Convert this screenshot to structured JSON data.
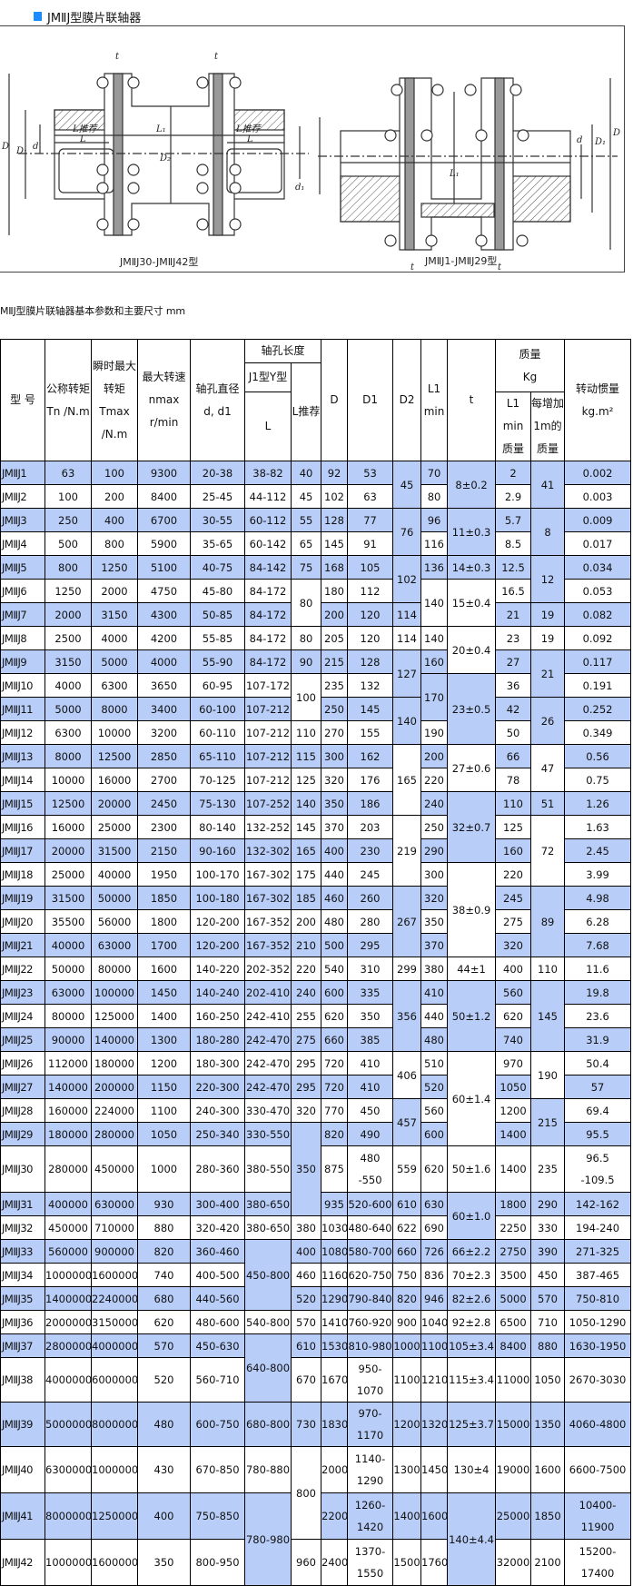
{
  "page_title": "JMⅡJ型膜片联轴器",
  "accent_color": "#1a8cff",
  "highlight_color": "#b8cdf8",
  "diagram": {
    "left_caption": "JMⅡJ30-JMⅡJ42型",
    "right_caption": "JMⅡJ1-JMⅡJ29型",
    "labels": {
      "D": "D",
      "D1": "D₁",
      "d": "d",
      "D2": "D₂",
      "d1": "d₁",
      "L": "L",
      "L1": "L₁",
      "Lrec": "L推荐",
      "t": "t"
    }
  },
  "table_caption": "MⅡJ型膜片联轴器基本参数和主要尺寸 mm",
  "header": {
    "model": "型 号",
    "tn": "公称转矩\nTn /N.m",
    "tmax": "瞬时最大\n转矩\nTmax\n/N.m",
    "nmax": "最大转速\nnmax\nr/min",
    "bore": "轴孔直径\nd, d1",
    "bore_length": "轴孔长度",
    "j1y": "J1型Y型",
    "l": "L",
    "lrec": "L推荐",
    "D": "D",
    "D1": "D1",
    "D2": "D2",
    "L1": "L1\nmin",
    "t": "t",
    "mass": "质量\nKg",
    "mass_l1": "L1\nmin\n质量",
    "mass_per_m": "每增加\n1m的\n质量",
    "inertia": "转动惯量\nkg.m²"
  },
  "rows": [
    {
      "hl": true,
      "cells": [
        "JMⅡJ1",
        "63",
        "100",
        "9300",
        "20-38",
        "38-82",
        "40",
        "92",
        "53",
        {
          "v": "45",
          "rs": 2,
          "hl": true
        },
        "70",
        {
          "v": "8±0.2",
          "rs": 2,
          "hl": true
        },
        "2",
        {
          "v": "41",
          "rs": 2,
          "hl": true
        },
        "0.002"
      ]
    },
    {
      "hl": false,
      "cells": [
        "JMⅡJ2",
        "100",
        "200",
        "8400",
        "25-45",
        "44-112",
        "45",
        "102",
        "63",
        "80",
        "2.9",
        "0.003"
      ]
    },
    {
      "hl": true,
      "cells": [
        "JMⅡJ3",
        "250",
        "400",
        "6700",
        "30-55",
        "60-112",
        "55",
        "128",
        "77",
        {
          "v": "76",
          "rs": 2,
          "hl": true
        },
        "96",
        {
          "v": "11±0.3",
          "rs": 2,
          "hl": true
        },
        "5.7",
        {
          "v": "8",
          "rs": 2,
          "hl": true
        },
        "0.009"
      ]
    },
    {
      "hl": false,
      "cells": [
        "JMⅡJ4",
        "500",
        "800",
        "5900",
        "35-65",
        "60-142",
        "65",
        "145",
        "91",
        "116",
        "8.5",
        "0.017"
      ]
    },
    {
      "hl": true,
      "cells": [
        "JMⅡJ5",
        "800",
        "1250",
        "5100",
        "40-75",
        "84-142",
        "75",
        "168",
        "105",
        {
          "v": "102",
          "rs": 2,
          "hl": true
        },
        "136",
        "14±0.3",
        "12.5",
        {
          "v": "12",
          "rs": 2,
          "hl": true
        },
        "0.034"
      ]
    },
    {
      "hl": false,
      "cells": [
        "JMⅡJ6",
        "1250",
        "2000",
        "4750",
        "45-80",
        "84-172",
        {
          "v": "80",
          "rs": 2,
          "hl": false
        },
        "180",
        "112",
        {
          "v": "140",
          "rs": 2,
          "hl": false
        },
        {
          "v": "15±0.4",
          "rs": 2,
          "hl": false
        },
        "16.5",
        "0.053"
      ]
    },
    {
      "hl": true,
      "cells": [
        "JMⅡJ7",
        "2000",
        "3150",
        "4300",
        "50-85",
        "84-172",
        "200",
        "120",
        "114",
        "21",
        "19",
        "0.082"
      ]
    },
    {
      "hl": false,
      "cells": [
        "JMⅡJ8",
        "2500",
        "4000",
        "4200",
        "55-85",
        "84-172",
        "80",
        "205",
        "120",
        "114",
        "140",
        {
          "v": "20±0.4",
          "rs": 2,
          "hl": false
        },
        "23",
        "19",
        "0.092"
      ]
    },
    {
      "hl": true,
      "cells": [
        "JMⅡJ9",
        "3150",
        "5000",
        "4000",
        "55-90",
        "84-172",
        "90",
        "215",
        "128",
        {
          "v": "127",
          "rs": 2,
          "hl": true
        },
        "160",
        "27",
        {
          "v": "21",
          "rs": 2,
          "hl": true
        },
        "0.117"
      ]
    },
    {
      "hl": false,
      "cells": [
        "JMⅡJ10",
        "4000",
        "6300",
        "3650",
        "60-95",
        "107-172",
        {
          "v": "100",
          "rs": 2,
          "hl": false
        },
        "235",
        "132",
        {
          "v": "170",
          "rs": 2,
          "hl": true
        },
        {
          "v": "23±0.5",
          "rs": 3,
          "hl": true
        },
        "36",
        "0.191"
      ]
    },
    {
      "hl": true,
      "cells": [
        "JMⅡJ11",
        "5000",
        "8000",
        "3400",
        "60-100",
        "107-212",
        "250",
        "145",
        {
          "v": "140",
          "rs": 2,
          "hl": true
        },
        "42",
        {
          "v": "26",
          "rs": 2,
          "hl": true
        },
        "0.252"
      ]
    },
    {
      "hl": false,
      "cells": [
        "JMⅡJ12",
        "6300",
        "10000",
        "3200",
        "60-110",
        "107-212",
        "110",
        "270",
        "155",
        "190",
        "50",
        "0.349"
      ]
    },
    {
      "hl": true,
      "cells": [
        "JMⅡJ13",
        "8000",
        "12500",
        "2850",
        "65-110",
        "107-212",
        "115",
        "300",
        "162",
        {
          "v": "165",
          "rs": 3,
          "hl": false
        },
        "200",
        {
          "v": "27±0.6",
          "rs": 2,
          "hl": false
        },
        "66",
        {
          "v": "47",
          "rs": 2,
          "hl": false
        },
        "0.56"
      ]
    },
    {
      "hl": false,
      "cells": [
        "JMⅡJ14",
        "10000",
        "16000",
        "2700",
        "70-125",
        "107-212",
        "125",
        "320",
        "176",
        "220",
        "78",
        "0.75"
      ]
    },
    {
      "hl": true,
      "cells": [
        "JMⅡJ15",
        "12500",
        "20000",
        "2450",
        "75-130",
        "107-252",
        "140",
        "350",
        "186",
        "240",
        {
          "v": "32±0.7",
          "rs": 3,
          "hl": true
        },
        "110",
        "51",
        "1.26"
      ]
    },
    {
      "hl": false,
      "cells": [
        "JMⅡJ16",
        "16000",
        "25000",
        "2300",
        "80-140",
        "132-252",
        "145",
        "370",
        "203",
        {
          "v": "219",
          "rs": 3,
          "hl": false
        },
        "250",
        "125",
        {
          "v": "72",
          "rs": 3,
          "hl": false
        },
        "1.63"
      ]
    },
    {
      "hl": true,
      "cells": [
        "JMⅡJ17",
        "20000",
        "31500",
        "2150",
        "90-160",
        "132-302",
        "165",
        "400",
        "230",
        "290",
        "160",
        "2.45"
      ]
    },
    {
      "hl": false,
      "cells": [
        "JMⅡJ18",
        "25000",
        "40000",
        "1950",
        "100-170",
        "167-302",
        "175",
        "440",
        "245",
        "300",
        {
          "v": "38±0.9",
          "rs": 4,
          "hl": false
        },
        "220",
        "3.99"
      ]
    },
    {
      "hl": true,
      "cells": [
        "JMⅡJ19",
        "31500",
        "50000",
        "1850",
        "100-180",
        "167-302",
        "185",
        "460",
        "260",
        {
          "v": "267",
          "rs": 3,
          "hl": true
        },
        "320",
        "245",
        {
          "v": "89",
          "rs": 3,
          "hl": true
        },
        "4.98"
      ]
    },
    {
      "hl": false,
      "cells": [
        "JMⅡJ20",
        "35500",
        "56000",
        "1800",
        "120-200",
        "167-352",
        "200",
        "480",
        "280",
        "350",
        "275",
        "6.28"
      ]
    },
    {
      "hl": true,
      "cells": [
        "JMⅡJ21",
        "40000",
        "63000",
        "1700",
        "120-200",
        "167-352",
        "210",
        "500",
        "295",
        "370",
        "320",
        "7.68"
      ]
    },
    {
      "hl": false,
      "cells": [
        "JMⅡJ22",
        "50000",
        "80000",
        "1600",
        "140-220",
        "202-352",
        "220",
        "540",
        "310",
        "299",
        "380",
        "44±1",
        "400",
        "110",
        "11.6"
      ]
    },
    {
      "hl": true,
      "cells": [
        "JMⅡJ23",
        "63000",
        "100000",
        "1450",
        "140-240",
        "202-410",
        "240",
        "600",
        "335",
        {
          "v": "356",
          "rs": 3,
          "hl": true
        },
        "410",
        {
          "v": "50±1.2",
          "rs": 3,
          "hl": true
        },
        "560",
        {
          "v": "145",
          "rs": 3,
          "hl": true
        },
        "19.8"
      ]
    },
    {
      "hl": false,
      "cells": [
        "JMⅡJ24",
        "80000",
        "125000",
        "1400",
        "160-250",
        "242-410",
        "255",
        "620",
        "350",
        "440",
        "620",
        "23.6"
      ]
    },
    {
      "hl": true,
      "cells": [
        "JMⅡJ25",
        "90000",
        "140000",
        "1300",
        "180-280",
        "242-470",
        "275",
        "660",
        "385",
        "480",
        "740",
        "31.9"
      ]
    },
    {
      "hl": false,
      "cells": [
        "JMⅡJ26",
        "112000",
        "180000",
        "1200",
        "180-300",
        "242-470",
        "295",
        "720",
        "410",
        {
          "v": "406",
          "rs": 2,
          "hl": false
        },
        "510",
        {
          "v": "60±1.4",
          "rs": 4,
          "hl": false
        },
        "970",
        {
          "v": "190",
          "rs": 2,
          "hl": false
        },
        "50.4"
      ]
    },
    {
      "hl": true,
      "cells": [
        "JMⅡJ27",
        "140000",
        "200000",
        "1150",
        "220-300",
        "242-470",
        "295",
        "720",
        "410",
        "520",
        "1050",
        "57"
      ]
    },
    {
      "hl": false,
      "cells": [
        "JMⅡJ28",
        "160000",
        "224000",
        "1100",
        "240-300",
        "330-470",
        "320",
        "770",
        "450",
        {
          "v": "457",
          "rs": 2,
          "hl": true
        },
        "560",
        "1200",
        {
          "v": "215",
          "rs": 2,
          "hl": true
        },
        "69.4"
      ]
    },
    {
      "hl": true,
      "cells": [
        "JMⅡJ29",
        "180000",
        "280000",
        "1050",
        "250-340",
        "330-550",
        {
          "v": "350",
          "rs": 3,
          "hl": true
        },
        "820",
        "490",
        "600",
        "1400",
        "95.5"
      ]
    },
    {
      "hl": false,
      "cells": [
        "JMⅡJ30",
        "280000",
        "450000",
        "1000",
        "280-360",
        "380-550",
        "875",
        "480\n-550",
        "559",
        "620",
        "50±1.6",
        "1400",
        "235",
        "96.5\n-109.5"
      ]
    },
    {
      "hl": true,
      "cells": [
        "JMⅡJ31",
        "400000",
        "630000",
        "930",
        "300-400",
        "380-650",
        "935",
        "520-600",
        "610",
        "630",
        {
          "v": "60±1.0",
          "rs": 2,
          "hl": true
        },
        "1800",
        "290",
        "142-162"
      ]
    },
    {
      "hl": false,
      "cells": [
        "JMⅡJ32",
        "450000",
        "710000",
        "880",
        "320-420",
        "380-650",
        "380",
        "1030",
        "480-640",
        "622",
        "690",
        "2250",
        "330",
        "194-240"
      ]
    },
    {
      "hl": true,
      "cells": [
        "JMⅡJ33",
        "560000",
        "900000",
        "820",
        "360-460",
        {
          "v": "450-800",
          "rs": 3,
          "hl": true
        },
        "400",
        "1080",
        "580-700",
        "660",
        "726",
        "66±2.2",
        "2750",
        "390",
        "271-325"
      ]
    },
    {
      "hl": false,
      "cells": [
        "JMⅡJ34",
        "1000000",
        "1600000",
        "740",
        "400-500",
        "460",
        "1160",
        "620-750",
        "750",
        "836",
        "70±2.3",
        "3500",
        "450",
        "387-465"
      ]
    },
    {
      "hl": true,
      "cells": [
        "JMⅡJ35",
        "1400000",
        "2240000",
        "680",
        "440-560",
        "520",
        "1290",
        "790-840",
        "820",
        "946",
        "82±2.6",
        "5000",
        "570",
        "750-810"
      ]
    },
    {
      "hl": false,
      "cells": [
        "JMⅡJ36",
        "2000000",
        "3150000",
        "620",
        "480-600",
        "540-800",
        "570",
        "1410",
        "760-920",
        "900",
        "1040",
        "92±2.8",
        "6500",
        "710",
        "1050-1290"
      ]
    },
    {
      "hl": true,
      "cells": [
        "JMⅡJ37",
        "2800000",
        "4000000",
        "570",
        "450-630",
        {
          "v": "640-800",
          "rs": 2,
          "hl": true
        },
        "610",
        "1530",
        "810-980",
        "1000",
        "1100",
        "105±3.4",
        "8400",
        "880",
        "1630-1950"
      ]
    },
    {
      "hl": false,
      "cells": [
        "JMⅡJ38",
        "4000000",
        "6000000",
        "520",
        "560-710",
        "670",
        "1670",
        "950-1070",
        "1100",
        "1210",
        "115±3.4",
        "11000",
        "1050",
        "2670-3030"
      ]
    },
    {
      "hl": true,
      "cells": [
        "JMⅡJ39",
        "5000000",
        "8000000",
        "480",
        "600-750",
        "680-800",
        "730",
        "1830",
        "970-1170",
        "1200",
        "1320",
        "125±3.7",
        "15000",
        "1350",
        "4060-4800"
      ]
    },
    {
      "hl": false,
      "cells": [
        "JMⅡJ40",
        "6300000",
        "10000000",
        "430",
        "670-850",
        "780-880",
        {
          "v": "800",
          "rs": 2,
          "hl": false
        },
        "2000",
        "1140-\n1290",
        "1300",
        "1450",
        "130±4",
        "19000",
        "1600",
        "6600-7500"
      ]
    },
    {
      "hl": true,
      "cells": [
        "JMⅡJ41",
        "8000000",
        "12500000",
        "400",
        "750-850",
        {
          "v": "780-980",
          "rs": 2,
          "hl": true
        },
        "2200",
        "1260-\n1420",
        "1400",
        "1600",
        {
          "v": "140±4.4",
          "rs": 2,
          "hl": true
        },
        "25000",
        "1850",
        "10400-11900"
      ]
    },
    {
      "hl": false,
      "cells": [
        "JMⅡJ42",
        "10000000",
        "16000000",
        "350",
        "800-950",
        "960",
        "2400",
        "1370-\n1550",
        "1500",
        "1760",
        "32000",
        "2100",
        "15200-17400"
      ]
    }
  ]
}
